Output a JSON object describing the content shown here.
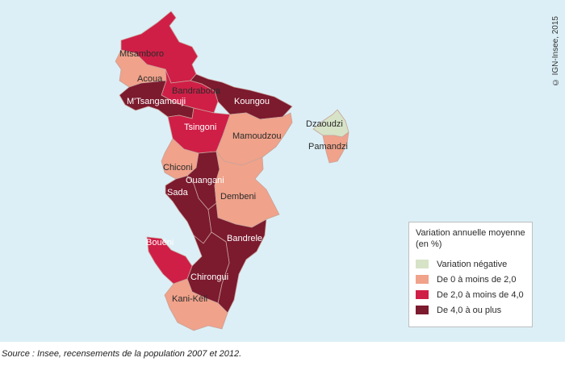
{
  "map": {
    "copyright": "© IGN-Insee, 2015",
    "source": "Source : Insee, recensements de la population 2007 et 2012.",
    "legend": {
      "title": "Variation annuelle moyenne (en %)",
      "classes": [
        {
          "label": "Variation négative",
          "color": "#d6e3c7"
        },
        {
          "label": "De 0 à moins de 2,0",
          "color": "#f0a28a"
        },
        {
          "label": "De 2,0 à moins de 4,0",
          "color": "#cf1f47"
        },
        {
          "label": "De 4,0 à ou plus",
          "color": "#7c1a2e"
        }
      ]
    },
    "communes": [
      {
        "name": "Mtsamboro",
        "class": 2
      },
      {
        "name": "Acoua",
        "class": 1
      },
      {
        "name": "Bandraboua",
        "class": 2
      },
      {
        "name": "M'Tsangamouji",
        "class": 3
      },
      {
        "name": "Koungou",
        "class": 3
      },
      {
        "name": "Tsingoni",
        "class": 2
      },
      {
        "name": "Mamoudzou",
        "class": 1
      },
      {
        "name": "Dzaoudzi",
        "class": 0
      },
      {
        "name": "Pamandzi",
        "class": 1
      },
      {
        "name": "Chiconi",
        "class": 1
      },
      {
        "name": "Ouangani",
        "class": 3
      },
      {
        "name": "Sada",
        "class": 3
      },
      {
        "name": "Dembeni",
        "class": 1
      },
      {
        "name": "Bandrele",
        "class": 3
      },
      {
        "name": "Bouéni",
        "class": 2
      },
      {
        "name": "Chirongui",
        "class": 3
      },
      {
        "name": "Kani-Kéli",
        "class": 1
      }
    ]
  }
}
